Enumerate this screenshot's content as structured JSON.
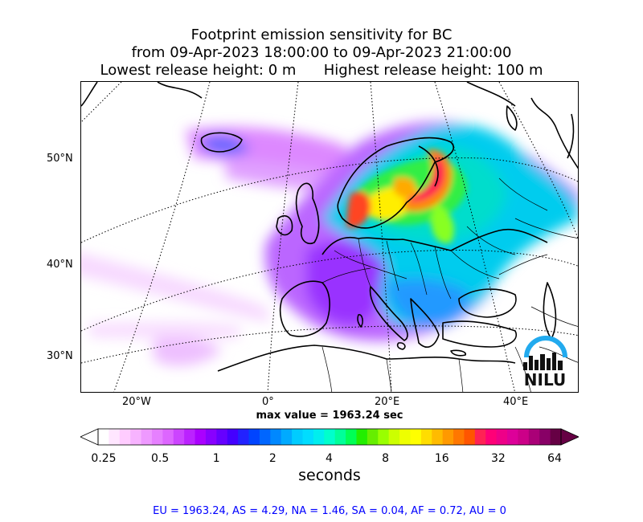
{
  "title": {
    "line1": "Footprint emission sensitivity for BC",
    "line2": "from 09-Apr-2023 18:00:00 to 09-Apr-2023 21:00:00",
    "line3": "Lowest release height: 0 m      Highest release height: 100 m"
  },
  "map": {
    "lat_labels": [
      "50°N",
      "40°N",
      "30°N"
    ],
    "lon_labels": [
      "20°W",
      "0°",
      "20°E",
      "40°E"
    ],
    "logo_text": "NILU"
  },
  "max_value_text": "max value = 1963.24 sec",
  "colorbar": {
    "tick_labels": [
      "0.25",
      "0.5",
      "1",
      "2",
      "4",
      "8",
      "16",
      "32",
      "64"
    ],
    "units": "seconds",
    "colors": [
      "#ffffff",
      "#ffe6ff",
      "#ffccff",
      "#f7b3ff",
      "#ee99ff",
      "#e680ff",
      "#dd66ff",
      "#cc44ff",
      "#bb22ff",
      "#aa00ff",
      "#8800ff",
      "#6600ff",
      "#4400ff",
      "#2222ff",
      "#0044ff",
      "#0066ff",
      "#0088ff",
      "#00aaff",
      "#00ccff",
      "#00ddff",
      "#00eeee",
      "#00ffcc",
      "#00ff99",
      "#00ff55",
      "#22ee00",
      "#66ee00",
      "#99ff00",
      "#ccff00",
      "#eeff00",
      "#ffff00",
      "#ffdd00",
      "#ffbb00",
      "#ff9900",
      "#ff7700",
      "#ff5500",
      "#ff2255",
      "#ff0077",
      "#ee0088",
      "#dd0099",
      "#cc0088",
      "#aa0077",
      "#880066",
      "#660044"
    ]
  },
  "footer": "EU = 1963.24,  AS = 4.29,  NA = 1.46,  SA = 0.04,  AF = 0.72,  AU = 0"
}
